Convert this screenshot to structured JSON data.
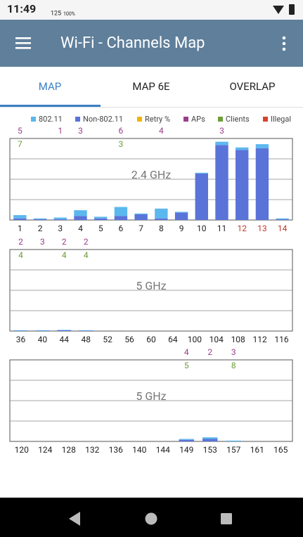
{
  "status_bar": {
    "time": "11:49",
    "signal": "125",
    "battery": "100%"
  },
  "app_bar": {
    "title": "Wi-Fi - Channels Map"
  },
  "tabs": [
    "MAP",
    "MAP 6E",
    "OVERLAP"
  ],
  "legend": [
    {
      "name": "802.11",
      "color": "#5bb8ee"
    },
    {
      "name": "Non-802.11",
      "color": "#5a73d9"
    },
    {
      "name": "Retry %",
      "color": "#f0b400"
    },
    {
      "name": "APs",
      "color": "#9b3d8c"
    },
    {
      "name": "Clients",
      "color": "#6d9e3a"
    },
    {
      "name": "Illegal",
      "color": "#d9412c"
    }
  ],
  "chart_data": [
    {
      "type": "bar",
      "label": "2.4 GHz",
      "categories": [
        1,
        2,
        3,
        4,
        5,
        6,
        7,
        8,
        9,
        10,
        11,
        12,
        13,
        14
      ],
      "category_colors": [
        null,
        null,
        null,
        null,
        null,
        null,
        null,
        null,
        null,
        null,
        null,
        "#c0392b",
        "#c0392b",
        "#c0392b"
      ],
      "series": [
        {
          "values": [
            4,
            1,
            2,
            7,
            2,
            11,
            1,
            12,
            1,
            1,
            4,
            3,
            5,
            1
          ]
        },
        {
          "values": [
            2,
            1,
            1,
            5,
            2,
            5,
            7,
            2,
            9,
            57,
            92,
            86,
            88,
            1
          ]
        }
      ],
      "aps": [
        5,
        null,
        1,
        3,
        null,
        6,
        null,
        4,
        null,
        null,
        3,
        null,
        null,
        null
      ],
      "clients": [
        7,
        null,
        null,
        null,
        null,
        3,
        null,
        null,
        null,
        null,
        null,
        null,
        null,
        null
      ],
      "ylim": [
        0,
        100
      ],
      "yticks": [
        25,
        50,
        75
      ],
      "grid": true
    },
    {
      "type": "bar",
      "label": "5 GHz",
      "categories": [
        36,
        40,
        44,
        48,
        52,
        56,
        60,
        64,
        100,
        104,
        108,
        112,
        116
      ],
      "series": [
        {
          "values": [
            0.5,
            0.5,
            0.5,
            0.5,
            0,
            0,
            0,
            0,
            0,
            0,
            0,
            0,
            0
          ]
        },
        {
          "values": [
            0.5,
            0.5,
            1,
            0.5,
            0,
            0,
            0,
            0,
            0,
            0,
            0,
            0,
            0
          ]
        }
      ],
      "aps": [
        2,
        3,
        2,
        2,
        null,
        null,
        null,
        null,
        null,
        null,
        null,
        null,
        null
      ],
      "clients": [
        4,
        null,
        4,
        4,
        null,
        null,
        null,
        null,
        null,
        null,
        null,
        null,
        null
      ],
      "ylim": [
        0,
        100
      ],
      "yticks": [
        25,
        50,
        75
      ],
      "grid": true
    },
    {
      "type": "bar",
      "label": "5 GHz",
      "categories": [
        120,
        124,
        128,
        132,
        136,
        140,
        144,
        149,
        153,
        157,
        161,
        165
      ],
      "series": [
        {
          "values": [
            0,
            0,
            0,
            0,
            0,
            0,
            0,
            1,
            2,
            1,
            0,
            0
          ]
        },
        {
          "values": [
            0,
            0,
            0,
            0,
            0,
            0,
            0,
            2,
            3,
            0,
            0,
            0
          ]
        }
      ],
      "aps": [
        null,
        null,
        null,
        null,
        null,
        null,
        null,
        4,
        2,
        3,
        null,
        null
      ],
      "clients": [
        null,
        null,
        null,
        null,
        null,
        null,
        null,
        5,
        null,
        8,
        null,
        null
      ],
      "ylim": [
        0,
        100
      ],
      "yticks": [
        25,
        50,
        75
      ],
      "grid": true
    }
  ]
}
